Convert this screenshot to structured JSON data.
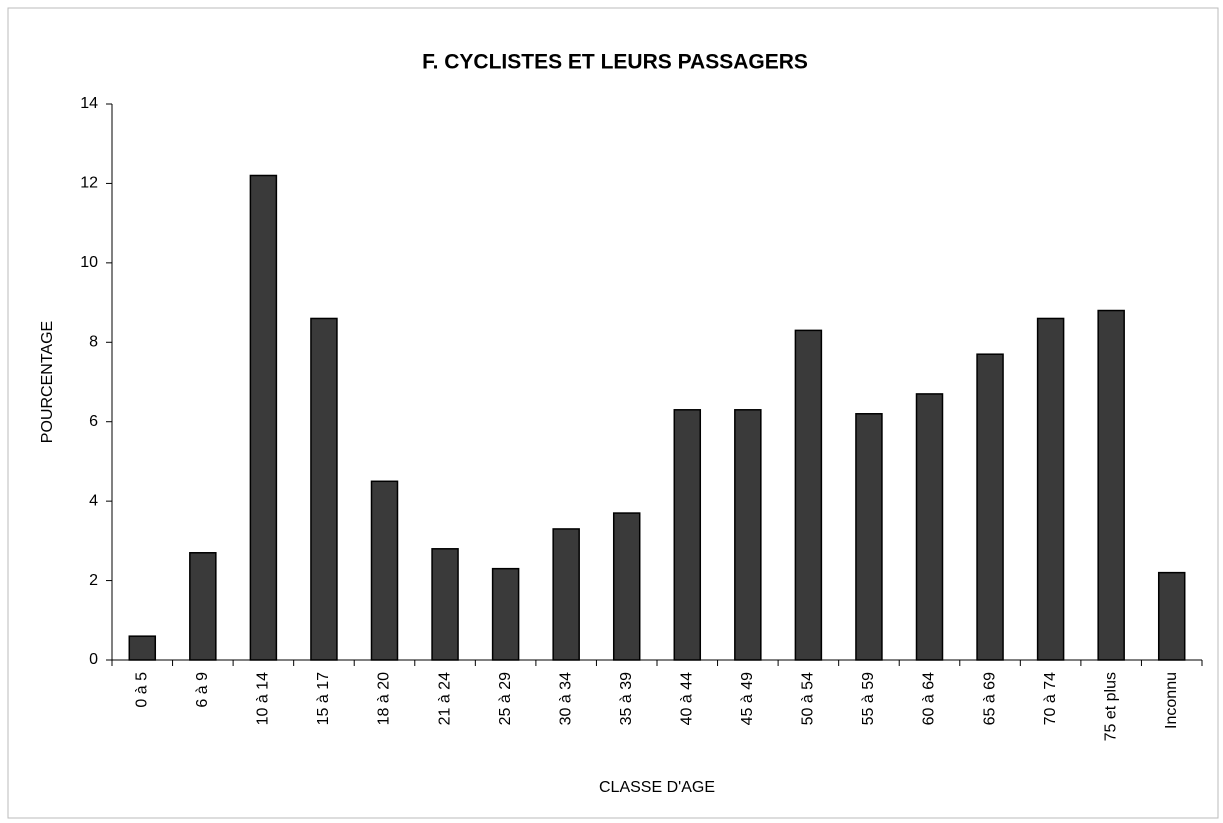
{
  "chart_data": {
    "type": "bar",
    "title": "F. CYCLISTES ET LEURS PASSAGERS",
    "x_label": "CLASSE D'AGE",
    "y_label": "POURCENTAGE",
    "categories": [
      "0 à 5",
      "6 à 9",
      "10 à 14",
      "15 à 17",
      "18 à 20",
      "21 à 24",
      "25 à 29",
      "30 à 34",
      "35 à 39",
      "40 à 44",
      "45 à 49",
      "50 à 54",
      "55 à 59",
      "60 à 64",
      "65 à 69",
      "70 à 74",
      "75 et plus",
      "Inconnu"
    ],
    "values": [
      0.6,
      2.7,
      12.2,
      8.6,
      4.5,
      2.8,
      2.3,
      3.3,
      3.7,
      6.3,
      6.3,
      8.3,
      6.2,
      6.7,
      7.7,
      8.6,
      8.8,
      2.2
    ],
    "color": "#3a3a3a",
    "ylim": [
      0,
      14
    ],
    "yticks": [
      0,
      2,
      4,
      6,
      8,
      10,
      12,
      14
    ],
    "grid": false
  }
}
